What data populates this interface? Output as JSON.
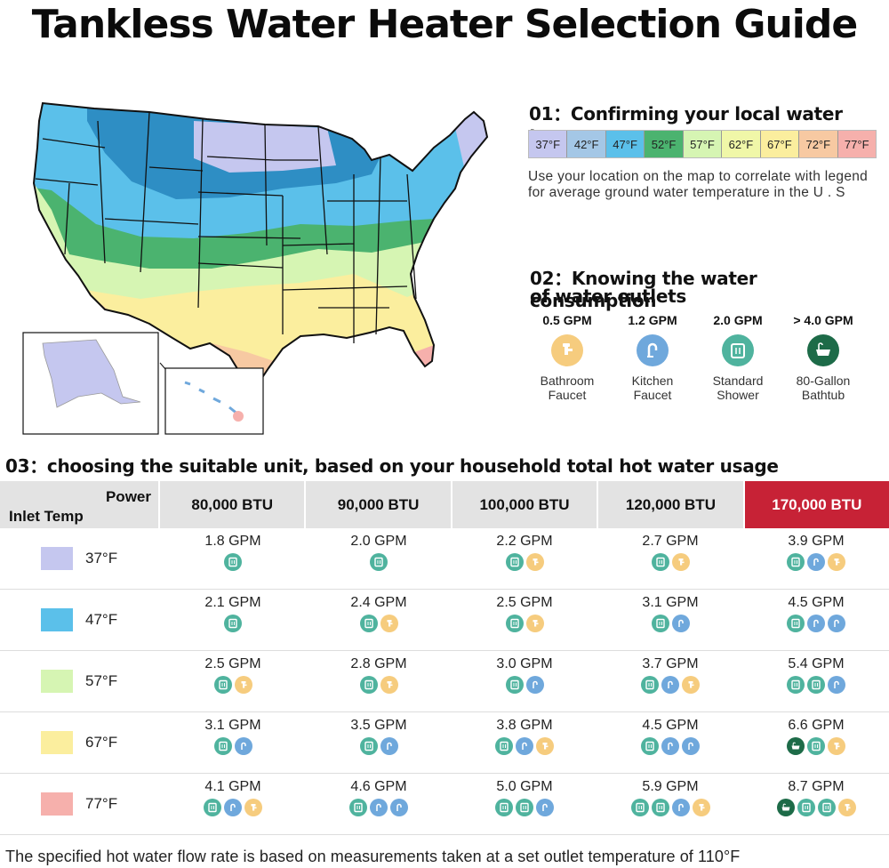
{
  "title": "Tankless Water Heater Selection Guide",
  "colors": {
    "t37": "#c5c7ef",
    "t42": "#a4c7e6",
    "t47": "#5bc0ea",
    "t52": "#4bb36f",
    "t57": "#d6f5b3",
    "t62": "#f0f7a8",
    "t67": "#fbee9e",
    "t72": "#f7c9a2",
    "t77": "#f6b0ac",
    "shower": "#4fb39e",
    "kitchen": "#6fa8dc",
    "bathroom": "#f6cc7e",
    "bathtub": "#1d6b48",
    "highlight": "#c72236"
  },
  "section1": {
    "heading": "01：Confirming your local water temp",
    "legend": [
      "37°F",
      "42°F",
      "47°F",
      "52°F",
      "57°F",
      "62°F",
      "67°F",
      "72°F",
      "77°F"
    ],
    "description": "Use your location on the map to correlate with legend for average ground water temperature in the U . S"
  },
  "section2": {
    "heading_line1": "02：Knowing the water consumption",
    "heading_line2": "of water outlets",
    "outlets": [
      {
        "gpm": "0.5 GPM",
        "name1": "Bathroom",
        "name2": "Faucet",
        "icon": "bathroom-faucet-icon"
      },
      {
        "gpm": "1.2 GPM",
        "name1": "Kitchen",
        "name2": "Faucet",
        "icon": "kitchen-faucet-icon"
      },
      {
        "gpm": "2.0 GPM",
        "name1": "Standard",
        "name2": "Shower",
        "icon": "shower-icon"
      },
      {
        "gpm": "> 4.0 GPM",
        "name1": "80-Gallon",
        "name2": "Bathtub",
        "icon": "bathtub-icon"
      }
    ]
  },
  "section3": {
    "heading": "03：choosing the suitable unit, based on your household total hot water usage",
    "power_label": "Power",
    "inlet_label": "Inlet Temp",
    "columns": [
      "80,000 BTU",
      "90,000 BTU",
      "100,000 BTU",
      "120,000 BTU",
      "170,000 BTU"
    ],
    "rows": [
      {
        "temp": "37°F",
        "cells": [
          {
            "gpm": "1.8 GPM",
            "icons": [
              "shower"
            ]
          },
          {
            "gpm": "2.0 GPM",
            "icons": [
              "shower"
            ]
          },
          {
            "gpm": "2.2 GPM",
            "icons": [
              "shower",
              "bathroom"
            ]
          },
          {
            "gpm": "2.7 GPM",
            "icons": [
              "shower",
              "bathroom"
            ]
          },
          {
            "gpm": "3.9 GPM",
            "icons": [
              "shower",
              "kitchen",
              "bathroom"
            ]
          }
        ]
      },
      {
        "temp": "47°F",
        "cells": [
          {
            "gpm": "2.1 GPM",
            "icons": [
              "shower"
            ]
          },
          {
            "gpm": "2.4 GPM",
            "icons": [
              "shower",
              "bathroom"
            ]
          },
          {
            "gpm": "2.5 GPM",
            "icons": [
              "shower",
              "bathroom"
            ]
          },
          {
            "gpm": "3.1 GPM",
            "icons": [
              "shower",
              "kitchen"
            ]
          },
          {
            "gpm": "4.5 GPM",
            "icons": [
              "shower",
              "kitchen",
              "kitchen"
            ]
          }
        ]
      },
      {
        "temp": "57°F",
        "cells": [
          {
            "gpm": "2.5 GPM",
            "icons": [
              "shower",
              "bathroom"
            ]
          },
          {
            "gpm": "2.8 GPM",
            "icons": [
              "shower",
              "bathroom"
            ]
          },
          {
            "gpm": "3.0 GPM",
            "icons": [
              "shower",
              "kitchen"
            ]
          },
          {
            "gpm": "3.7 GPM",
            "icons": [
              "shower",
              "kitchen",
              "bathroom"
            ]
          },
          {
            "gpm": "5.4 GPM",
            "icons": [
              "shower",
              "shower",
              "kitchen"
            ]
          }
        ]
      },
      {
        "temp": "67°F",
        "cells": [
          {
            "gpm": "3.1 GPM",
            "icons": [
              "shower",
              "kitchen"
            ]
          },
          {
            "gpm": "3.5 GPM",
            "icons": [
              "shower",
              "kitchen"
            ]
          },
          {
            "gpm": "3.8 GPM",
            "icons": [
              "shower",
              "kitchen",
              "bathroom"
            ]
          },
          {
            "gpm": "4.5 GPM",
            "icons": [
              "shower",
              "kitchen",
              "kitchen"
            ]
          },
          {
            "gpm": "6.6 GPM",
            "icons": [
              "bathtub",
              "shower",
              "bathroom"
            ]
          }
        ]
      },
      {
        "temp": "77°F",
        "cells": [
          {
            "gpm": "4.1 GPM",
            "icons": [
              "shower",
              "kitchen",
              "bathroom"
            ]
          },
          {
            "gpm": "4.6 GPM",
            "icons": [
              "shower",
              "kitchen",
              "kitchen"
            ]
          },
          {
            "gpm": "5.0 GPM",
            "icons": [
              "shower",
              "shower",
              "kitchen"
            ]
          },
          {
            "gpm": "5.9 GPM",
            "icons": [
              "shower",
              "shower",
              "kitchen",
              "bathroom"
            ]
          },
          {
            "gpm": "8.7 GPM",
            "icons": [
              "bathtub",
              "shower",
              "shower",
              "bathroom"
            ]
          }
        ]
      }
    ]
  },
  "footnote": "The specified hot water flow rate is based on measurements taken at a set outlet temperature of 110°F"
}
